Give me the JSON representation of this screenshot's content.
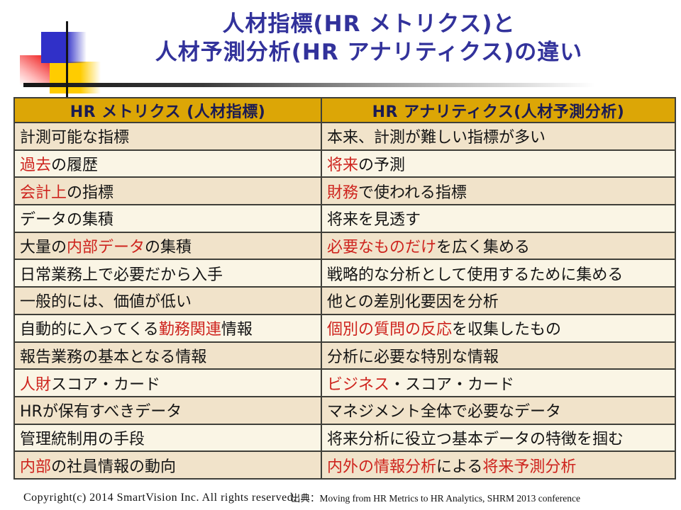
{
  "title": {
    "line1": "人材指標(HR メトリクス)と",
    "line2": "人材予測分析(HR アナリティクス)の違い"
  },
  "table": {
    "headers": [
      "HR メトリクス (人材指標)",
      "HR アナリティクス(人材予測分析)"
    ],
    "rows": [
      {
        "left": [
          {
            "text": "計測可能な指標",
            "red": false
          }
        ],
        "right": [
          {
            "text": "本来、計測が難しい指標が多い",
            "red": false
          }
        ]
      },
      {
        "left": [
          {
            "text": "過去",
            "red": true
          },
          {
            "text": "の履歴",
            "red": false
          }
        ],
        "right": [
          {
            "text": "将来",
            "red": true
          },
          {
            "text": "の予測",
            "red": false
          }
        ]
      },
      {
        "left": [
          {
            "text": "会計上",
            "red": true
          },
          {
            "text": "の指標",
            "red": false
          }
        ],
        "right": [
          {
            "text": "財務",
            "red": true
          },
          {
            "text": "で使われる指標",
            "red": false
          }
        ]
      },
      {
        "left": [
          {
            "text": "データの集積",
            "red": false
          }
        ],
        "right": [
          {
            "text": "将来を見透す",
            "red": false
          }
        ]
      },
      {
        "left": [
          {
            "text": "大量の",
            "red": false
          },
          {
            "text": "内部データ",
            "red": true
          },
          {
            "text": "の集積",
            "red": false
          }
        ],
        "right": [
          {
            "text": "必要なものだけ",
            "red": true
          },
          {
            "text": "を広く集める",
            "red": false
          }
        ]
      },
      {
        "left": [
          {
            "text": "日常業務上で必要だから入手",
            "red": false
          }
        ],
        "right": [
          {
            "text": "戦略的な分析として使用するために集める",
            "red": false
          }
        ]
      },
      {
        "left": [
          {
            "text": "一般的には、価値が低い",
            "red": false
          }
        ],
        "right": [
          {
            "text": "他との差別化要因を分析",
            "red": false
          }
        ]
      },
      {
        "left": [
          {
            "text": "自動的に入ってくる",
            "red": false
          },
          {
            "text": "勤務関連",
            "red": true
          },
          {
            "text": "情報",
            "red": false
          }
        ],
        "right": [
          {
            "text": "個別の質問の反応",
            "red": true
          },
          {
            "text": "を収集したもの",
            "red": false
          }
        ]
      },
      {
        "left": [
          {
            "text": "報告業務の基本となる情報",
            "red": false
          }
        ],
        "right": [
          {
            "text": "分析に必要な特別な情報",
            "red": false
          }
        ]
      },
      {
        "left": [
          {
            "text": "人財",
            "red": true
          },
          {
            "text": "スコア・カード",
            "red": false
          }
        ],
        "right": [
          {
            "text": "ビジネス",
            "red": true
          },
          {
            "text": "・スコア・カード",
            "red": false
          }
        ]
      },
      {
        "left": [
          {
            "text": "HRが保有すべきデータ",
            "red": false
          }
        ],
        "right": [
          {
            "text": "マネジメント全体で必要なデータ",
            "red": false
          }
        ]
      },
      {
        "left": [
          {
            "text": "管理統制用の手段",
            "red": false
          }
        ],
        "right": [
          {
            "text": "将来分析に役立つ基本データの特徴を掴む",
            "red": false
          }
        ]
      },
      {
        "left": [
          {
            "text": "内部",
            "red": true
          },
          {
            "text": "の社員情報の動向",
            "red": false
          }
        ],
        "right": [
          {
            "text": "内外の情報分析",
            "red": true
          },
          {
            "text": "による",
            "red": false
          },
          {
            "text": "将来予測分析",
            "red": true
          }
        ]
      }
    ]
  },
  "footer": {
    "copyright": "Copyright(c) 2014  SmartVision Inc. All rights reserved.",
    "source": "出典：Moving from HR Metrics to HR Analytics, SHRM 2013 conference"
  },
  "colors": {
    "title": "#32329B",
    "header_bg": "#DCA606",
    "header_text": "#1B1B52",
    "row_tan": "#F1E3CA",
    "row_cream": "#FAF5E5",
    "red_text": "#CE241E",
    "border": "#3F3F39",
    "accent_blue": "#3030C8",
    "accent_yellow": "#FFCC00",
    "accent_red": "#EE1C1C"
  }
}
